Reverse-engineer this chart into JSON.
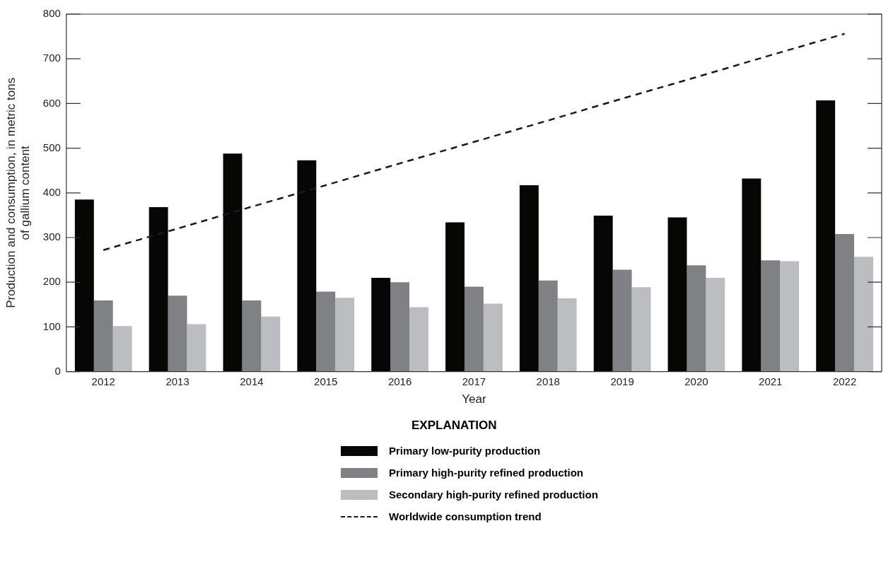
{
  "chart_data": {
    "type": "bar",
    "xlabel": "Year",
    "ylabel": "Production and consumption, in metric tons of gallium content",
    "legend_title": "EXPLANATION",
    "legend": "bottom",
    "categories": [
      "2012",
      "2013",
      "2014",
      "2015",
      "2016",
      "2017",
      "2018",
      "2019",
      "2020",
      "2021",
      "2022"
    ],
    "ylim": [
      0,
      800
    ],
    "yticks": [
      0,
      100,
      200,
      300,
      400,
      500,
      600,
      700,
      800
    ],
    "series": [
      {
        "name": "Primary low-purity production",
        "color": "#060605",
        "values": [
          385,
          368,
          488,
          473,
          210,
          334,
          417,
          349,
          345,
          432,
          607
        ]
      },
      {
        "name": "Primary high-purity refined production",
        "color": "#808184",
        "values": [
          159,
          170,
          159,
          179,
          200,
          190,
          204,
          228,
          238,
          249,
          308
        ]
      },
      {
        "name": "Secondary high-purity refined production",
        "color": "#bcbdc0",
        "values": [
          102,
          106,
          123,
          165,
          144,
          152,
          164,
          189,
          210,
          247,
          257
        ]
      },
      {
        "name": "Worldwide consumption trend",
        "type": "line",
        "line_style": "dashed",
        "marker": "none",
        "color": "#1a1a1a",
        "values": [
          272,
          320,
          369,
          417,
          466,
          514,
          562,
          611,
          659,
          708,
          756
        ]
      }
    ]
  }
}
